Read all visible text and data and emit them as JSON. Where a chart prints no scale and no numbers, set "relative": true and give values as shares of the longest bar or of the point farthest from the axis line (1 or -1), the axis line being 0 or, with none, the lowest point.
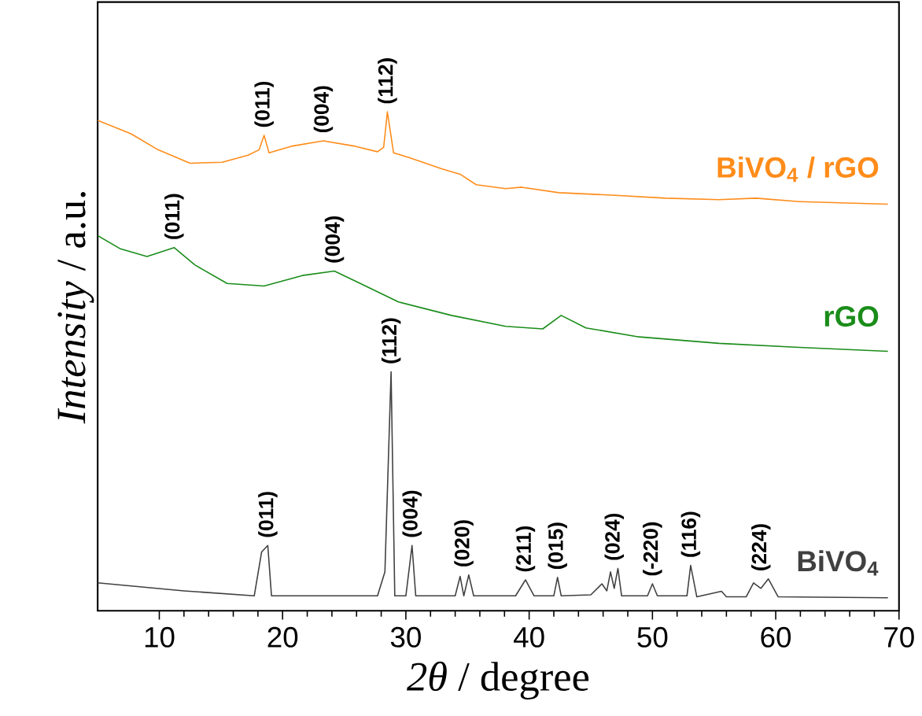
{
  "chart_data": {
    "type": "line",
    "relative": true,
    "xlabel": "*2θ* / degree",
    "ylabel": "*Intensity* / a.u.",
    "xlim": [
      5,
      70
    ],
    "xticks": [
      10,
      20,
      30,
      40,
      50,
      60,
      70
    ],
    "tick_labels": "x",
    "marker": "none",
    "line_style": "solid",
    "series": [
      {
        "name": "BiVO$_{4}$ / rGO",
        "color": "#ff8c1a",
        "x": [
          5.0,
          7.7,
          9.9,
          12.5,
          15.1,
          17.2,
          18.1,
          18.5,
          18.9,
          20.7,
          23.3,
          25.9,
          27.7,
          28.2,
          28.5,
          29.0,
          30.3,
          32.9,
          34.4,
          35.7,
          38.1,
          39.4,
          42.4,
          46.7,
          51.1,
          55.4,
          58.4,
          61.9,
          69.1
        ],
        "values": [
          0.983,
          0.956,
          0.924,
          0.897,
          0.899,
          0.913,
          0.924,
          0.953,
          0.918,
          0.931,
          0.942,
          0.931,
          0.92,
          0.929,
          1.0,
          0.918,
          0.908,
          0.886,
          0.875,
          0.854,
          0.846,
          0.849,
          0.838,
          0.833,
          0.827,
          0.824,
          0.827,
          0.82,
          0.815
        ]
      },
      {
        "name": "rGO",
        "color": "#1a8c1a",
        "x": [
          5.0,
          6.8,
          9.0,
          11.2,
          12.9,
          15.5,
          18.5,
          21.6,
          24.2,
          26.3,
          29.4,
          33.7,
          38.1,
          41.1,
          42.6,
          44.6,
          48.9,
          55.4,
          61.9,
          69.1
        ],
        "values": [
          0.752,
          0.726,
          0.71,
          0.728,
          0.693,
          0.656,
          0.651,
          0.672,
          0.681,
          0.656,
          0.619,
          0.592,
          0.57,
          0.565,
          0.592,
          0.567,
          0.549,
          0.536,
          0.528,
          0.52
        ]
      },
      {
        "name": "BiVO$_{4}$",
        "color": "#404040",
        "x": [
          5.0,
          12.0,
          17.7,
          18.3,
          18.8,
          19.1,
          27.7,
          28.3,
          28.8,
          29.1,
          30.0,
          30.5,
          30.8,
          34.0,
          34.4,
          34.7,
          35.1,
          35.5,
          38.9,
          39.7,
          40.4,
          42.0,
          42.3,
          42.6,
          45.0,
          45.9,
          46.3,
          46.6,
          46.9,
          47.2,
          47.5,
          49.6,
          50.0,
          50.4,
          52.8,
          53.1,
          53.6,
          55.6,
          56.0,
          57.6,
          58.2,
          58.8,
          59.4,
          60.2,
          69.1
        ],
        "values": [
          0.056,
          0.04,
          0.03,
          0.118,
          0.131,
          0.03,
          0.03,
          0.078,
          0.479,
          0.03,
          0.03,
          0.131,
          0.03,
          0.03,
          0.069,
          0.03,
          0.072,
          0.03,
          0.03,
          0.062,
          0.03,
          0.03,
          0.067,
          0.03,
          0.032,
          0.054,
          0.04,
          0.078,
          0.045,
          0.085,
          0.03,
          0.03,
          0.054,
          0.03,
          0.03,
          0.091,
          0.028,
          0.039,
          0.028,
          0.028,
          0.056,
          0.045,
          0.064,
          0.028,
          0.026
        ]
      }
    ],
    "annotations": [
      {
        "text": "(011)",
        "x": 18.5,
        "y": 0.953
      },
      {
        "text": "(004)",
        "x": 23.3,
        "y": 0.942
      },
      {
        "text": "(112)",
        "x": 28.5,
        "y": 1.0
      },
      {
        "text": "(011)",
        "x": 11.2,
        "y": 0.728
      },
      {
        "text": "(004)",
        "x": 24.2,
        "y": 0.681
      },
      {
        "text": "(011)",
        "x": 18.8,
        "y": 0.131
      },
      {
        "text": "(112)",
        "x": 28.8,
        "y": 0.479
      },
      {
        "text": "(004)",
        "x": 30.5,
        "y": 0.131
      },
      {
        "text": "(020)",
        "x": 34.7,
        "y": 0.072
      },
      {
        "text": "(211)",
        "x": 39.7,
        "y": 0.062
      },
      {
        "text": "(015)",
        "x": 42.3,
        "y": 0.067
      },
      {
        "text": "(024)",
        "x": 46.9,
        "y": 0.085
      },
      {
        "text": "(-220)",
        "x": 50.0,
        "y": 0.054
      },
      {
        "text": "(116)",
        "x": 53.1,
        "y": 0.091
      },
      {
        "text": "(224)",
        "x": 58.8,
        "y": 0.064
      }
    ]
  }
}
